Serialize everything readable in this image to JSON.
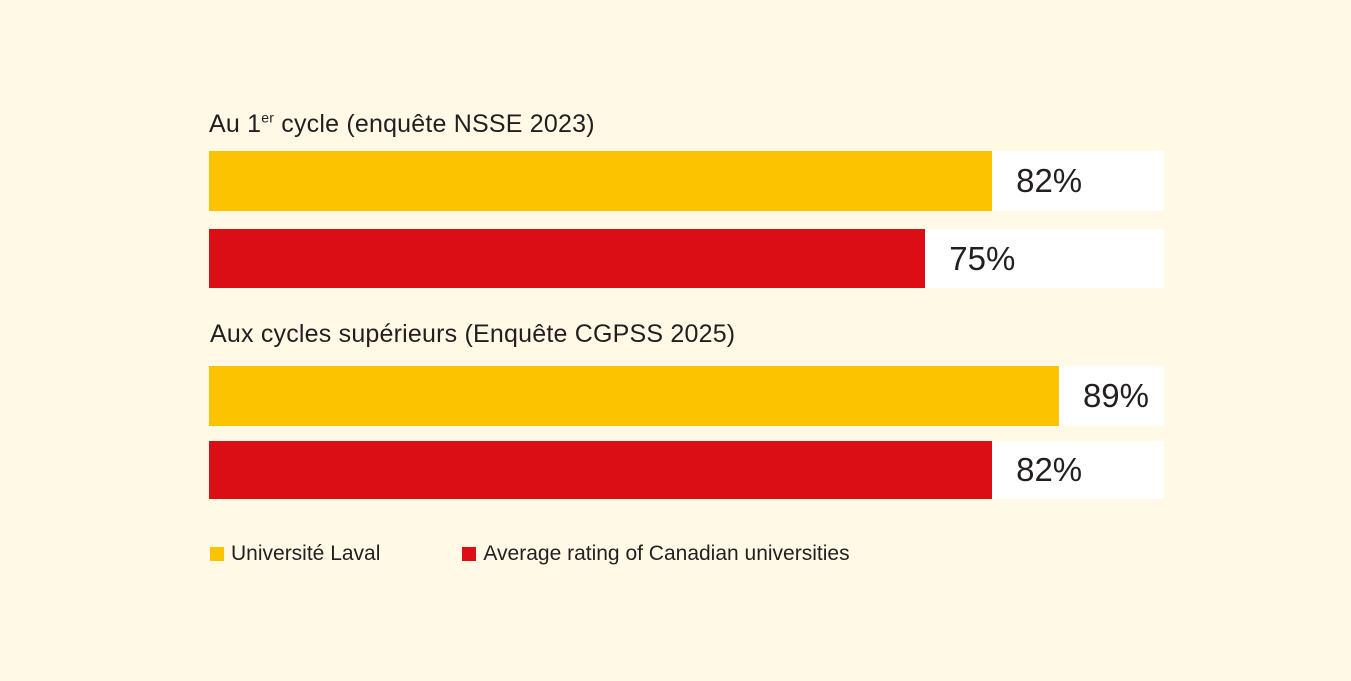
{
  "page": {
    "background": "#FFF9E6",
    "text_color": "#231F20"
  },
  "colors": {
    "laval_yellow": "#FCC300",
    "average_red": "#DC0E15",
    "bar_track": "#FFFFFF"
  },
  "chart_data": {
    "type": "bar",
    "orientation": "horizontal",
    "value_unit": "%",
    "axis_range": [
      0,
      100
    ],
    "grid": false,
    "legend_position": "bottom-left",
    "categories": [
      "Au 1er cycle (enquête NSSE 2023)",
      "Aux cycles supérieurs (Enquête CGPSS 2025)"
    ],
    "series": [
      {
        "name": "Université Laval",
        "color": "#FCC300",
        "values": [
          82,
          89
        ]
      },
      {
        "name": "Average rating of Canadian universities",
        "color": "#DC0E15",
        "values": [
          75,
          82
        ]
      }
    ],
    "groups": [
      {
        "title_prefix": "Au 1",
        "title_sup": "er",
        "title_suffix": " cycle (enquête NSSE 2023)",
        "bars": [
          {
            "series": "Université Laval",
            "value": 82,
            "label": "82%",
            "color": "#FCC300"
          },
          {
            "series": "Average rating of Canadian universities",
            "value": 75,
            "label": "75%",
            "color": "#DC0E15"
          }
        ]
      },
      {
        "title_prefix": "Aux cycles supérieurs (Enquête CGPSS 2025)",
        "title_sup": "",
        "title_suffix": "",
        "bars": [
          {
            "series": "Université Laval",
            "value": 89,
            "label": "89%",
            "color": "#FCC300"
          },
          {
            "series": "Average rating of Canadian universities",
            "value": 82,
            "label": "82%",
            "color": "#DC0E15"
          }
        ]
      }
    ]
  },
  "legend": {
    "items": [
      {
        "label": "Université Laval",
        "color": "#FCC300"
      },
      {
        "label": "Average rating of Canadian universities",
        "color": "#DC0E15"
      }
    ]
  }
}
